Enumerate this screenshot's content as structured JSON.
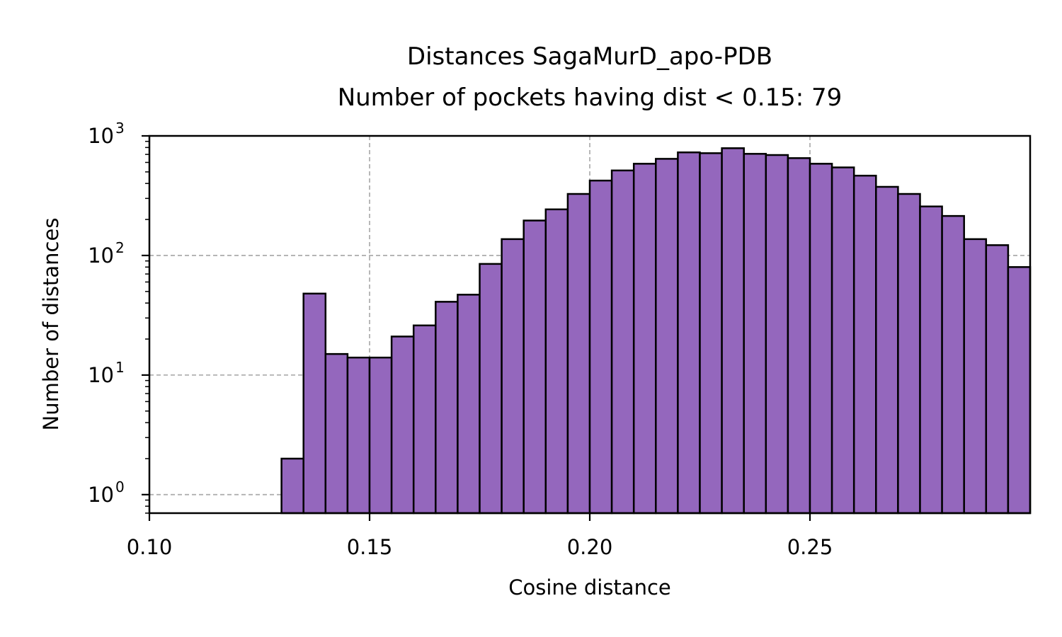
{
  "chart_data": {
    "type": "bar",
    "title": "Distances SagaMurD_apo-PDB",
    "subtitle": "Number of pockets having dist < 0.15: 79",
    "xlabel": "Cosine distance",
    "ylabel": "Number of distances",
    "yscale": "log",
    "xlim": [
      0.1,
      0.3
    ],
    "ylim": [
      0.7,
      1000
    ],
    "grid": true,
    "bin_width": 0.005,
    "bar_color": "#9467bd",
    "edge_color": "#000000",
    "x_ticks": [
      "0.10",
      "0.15",
      "0.20",
      "0.25"
    ],
    "y_ticks": [
      {
        "base": "10",
        "exp": "0"
      },
      {
        "base": "10",
        "exp": "1"
      },
      {
        "base": "10",
        "exp": "2"
      },
      {
        "base": "10",
        "exp": "3"
      }
    ],
    "bins": [
      {
        "x": 0.13,
        "value": 2
      },
      {
        "x": 0.135,
        "value": 48
      },
      {
        "x": 0.14,
        "value": 15
      },
      {
        "x": 0.145,
        "value": 14
      },
      {
        "x": 0.15,
        "value": 14
      },
      {
        "x": 0.155,
        "value": 21
      },
      {
        "x": 0.16,
        "value": 26
      },
      {
        "x": 0.165,
        "value": 41
      },
      {
        "x": 0.17,
        "value": 47
      },
      {
        "x": 0.175,
        "value": 85
      },
      {
        "x": 0.18,
        "value": 137
      },
      {
        "x": 0.185,
        "value": 196
      },
      {
        "x": 0.19,
        "value": 243
      },
      {
        "x": 0.195,
        "value": 327
      },
      {
        "x": 0.2,
        "value": 423
      },
      {
        "x": 0.205,
        "value": 514
      },
      {
        "x": 0.21,
        "value": 585
      },
      {
        "x": 0.215,
        "value": 643
      },
      {
        "x": 0.22,
        "value": 728
      },
      {
        "x": 0.225,
        "value": 717
      },
      {
        "x": 0.23,
        "value": 789
      },
      {
        "x": 0.235,
        "value": 708
      },
      {
        "x": 0.24,
        "value": 692
      },
      {
        "x": 0.245,
        "value": 652
      },
      {
        "x": 0.25,
        "value": 585
      },
      {
        "x": 0.255,
        "value": 545
      },
      {
        "x": 0.26,
        "value": 465
      },
      {
        "x": 0.265,
        "value": 375
      },
      {
        "x": 0.27,
        "value": 327
      },
      {
        "x": 0.275,
        "value": 257
      },
      {
        "x": 0.28,
        "value": 214
      },
      {
        "x": 0.285,
        "value": 137
      },
      {
        "x": 0.29,
        "value": 122
      },
      {
        "x": 0.295,
        "value": 80
      }
    ]
  }
}
